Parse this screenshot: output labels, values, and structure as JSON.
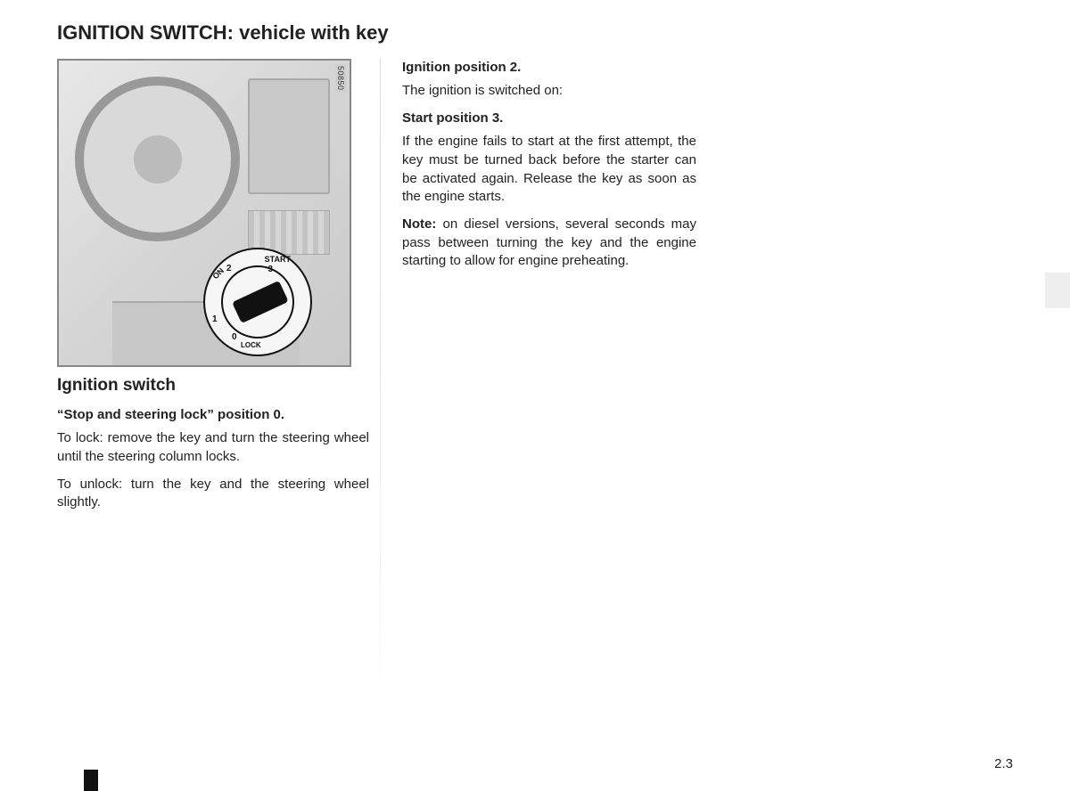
{
  "page_title": "IGNITION SWITCH: vehicle with key",
  "figure": {
    "ref_number": "50850",
    "labels": {
      "start": "START",
      "on": "ON",
      "lock": "LOCK",
      "n3": "3",
      "n2": "2",
      "n1": "1",
      "n0": "0"
    }
  },
  "left": {
    "subheading": "Ignition switch",
    "pos0_head": "“Stop and steering lock” position 0.",
    "p1": "To lock: remove the key and turn the steering wheel until the steering column locks.",
    "p2": "To unlock: turn the key and the steering wheel slightly."
  },
  "center": {
    "pos2_head": "Ignition position 2.",
    "pos2_text": "The ignition is switched on:",
    "pos3_head": "Start position 3.",
    "pos3_text": "If the engine fails to start at the first attempt, the key must be turned back before the starter can be activated again. Release the key as soon as the engine starts.",
    "note_label": "Note:",
    "note_text": " on diesel versions, several seconds may pass between turning the key and the engine starting to allow for engine preheating."
  },
  "page_number": "2.3"
}
